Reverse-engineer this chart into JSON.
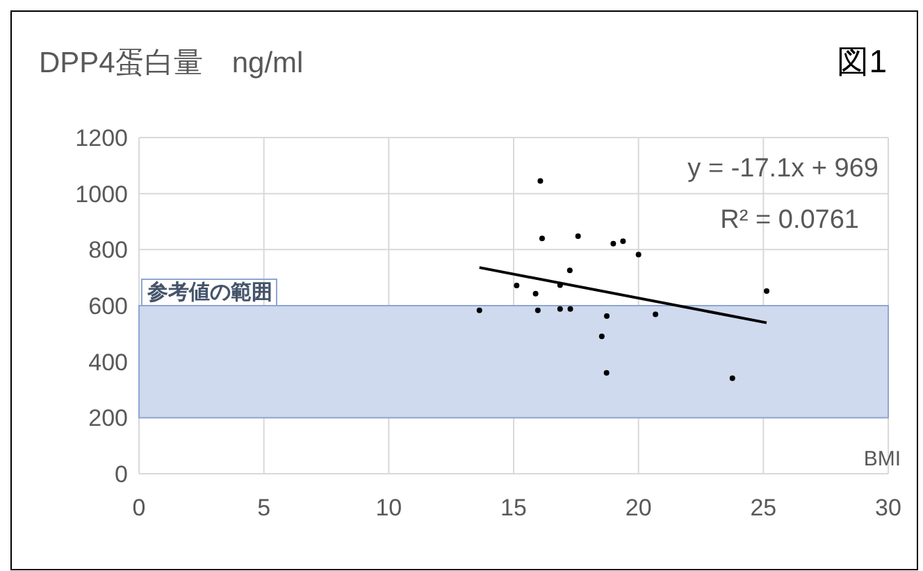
{
  "chart_data": {
    "type": "scatter",
    "title": "DPP4蛋白量　ng/ml",
    "xlabel": "BMI",
    "annotations": [
      "図1",
      "y = -17.1x + 969",
      "R² = 0.0761"
    ],
    "xlim": [
      0,
      30
    ],
    "xticks": [
      0,
      5,
      10,
      15,
      20,
      25,
      30
    ],
    "ylim": [
      0,
      1200
    ],
    "yticks": [
      0,
      200,
      400,
      600,
      800,
      1000,
      1200
    ],
    "grid": true,
    "marker": "circle",
    "bands": [
      {
        "axis": "y",
        "from": 200,
        "to": 600,
        "label": "参考値の範囲",
        "color": "#cfdaee"
      }
    ],
    "series": [
      {
        "color": "#000000",
        "x": [
          16.07,
          16.14,
          17.58,
          18.99,
          19.38,
          20.0,
          17.25,
          15.12,
          15.88,
          16.86,
          25.13,
          13.63,
          15.97,
          16.86,
          17.27,
          18.73,
          20.68,
          18.53,
          18.72,
          23.76
        ],
        "values": [
          1045,
          840,
          848,
          821,
          830,
          782,
          726,
          672,
          643,
          673,
          652,
          583,
          583,
          588,
          588,
          563,
          569,
          490,
          360,
          341
        ]
      },
      {
        "type": "line",
        "color": "#000000",
        "marker": "none",
        "x": [
          13.63,
          25.13
        ],
        "values": [
          736,
          539
        ]
      }
    ]
  }
}
